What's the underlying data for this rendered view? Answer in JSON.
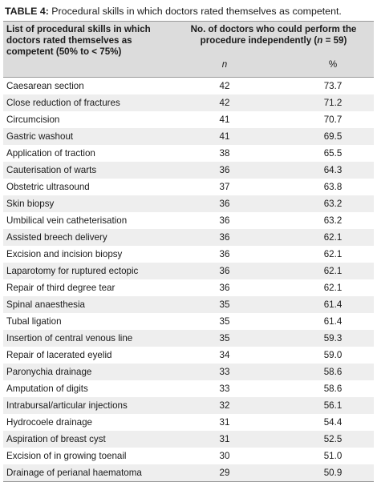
{
  "caption": {
    "label": "TABLE 4:",
    "text": " Procedural skills in which doctors rated themselves as competent."
  },
  "header": {
    "col1": "List of procedural skills in which doctors rated themselves as competent (50% to < 75%)",
    "col2_pre": "No. of doctors who could perform the procedure independently (",
    "col2_n": "n",
    "col2_post": " = 59)",
    "sub_n": "n",
    "sub_pct": "%"
  },
  "rows": [
    {
      "skill": "Caesarean section",
      "n": "42",
      "pct": "73.7"
    },
    {
      "skill": "Close reduction of fractures",
      "n": "42",
      "pct": "71.2"
    },
    {
      "skill": "Circumcision",
      "n": "41",
      "pct": "70.7"
    },
    {
      "skill": "Gastric washout",
      "n": "41",
      "pct": "69.5"
    },
    {
      "skill": "Application of traction",
      "n": "38",
      "pct": "65.5"
    },
    {
      "skill": "Cauterisation of warts",
      "n": "36",
      "pct": "64.3"
    },
    {
      "skill": "Obstetric ultrasound",
      "n": "37",
      "pct": "63.8"
    },
    {
      "skill": "Skin biopsy",
      "n": "36",
      "pct": "63.2"
    },
    {
      "skill": "Umbilical vein catheterisation",
      "n": "36",
      "pct": "63.2"
    },
    {
      "skill": "Assisted breech delivery",
      "n": "36",
      "pct": "62.1"
    },
    {
      "skill": "Excision and incision biopsy",
      "n": "36",
      "pct": "62.1"
    },
    {
      "skill": "Laparotomy for ruptured ectopic",
      "n": "36",
      "pct": "62.1"
    },
    {
      "skill": "Repair of third degree tear",
      "n": "36",
      "pct": "62.1"
    },
    {
      "skill": "Spinal anaesthesia",
      "n": "35",
      "pct": "61.4"
    },
    {
      "skill": "Tubal ligation",
      "n": "35",
      "pct": "61.4"
    },
    {
      "skill": "Insertion of central venous line",
      "n": "35",
      "pct": "59.3"
    },
    {
      "skill": "Repair of lacerated eyelid",
      "n": "34",
      "pct": "59.0"
    },
    {
      "skill": "Paronychia drainage",
      "n": "33",
      "pct": "58.6"
    },
    {
      "skill": "Amputation of digits",
      "n": "33",
      "pct": "58.6"
    },
    {
      "skill": "Intrabursal/articular injections",
      "n": "32",
      "pct": "56.1"
    },
    {
      "skill": "Hydrocoele drainage",
      "n": "31",
      "pct": "54.4"
    },
    {
      "skill": "Aspiration of breast cyst",
      "n": "31",
      "pct": "52.5"
    },
    {
      "skill": "Excision of in growing toenail",
      "n": "30",
      "pct": "51.0"
    },
    {
      "skill": "Drainage of perianal haematoma",
      "n": "29",
      "pct": "50.9"
    }
  ]
}
